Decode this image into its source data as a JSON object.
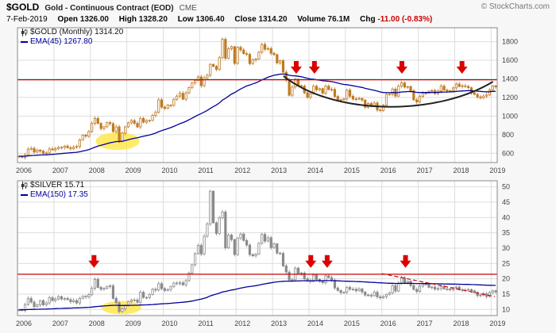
{
  "header": {
    "symbol": "$GOLD",
    "description": "Gold - Continuous Contract (EOD)",
    "exchange": "CME",
    "copyright": "© StockCharts.com",
    "date": "7-Feb-2019",
    "quote": {
      "open_label": "Open",
      "open": "1326.00",
      "high_label": "High",
      "high": "1328.20",
      "low_label": "Low",
      "low": "1306.40",
      "close_label": "Close",
      "close": "1314.20",
      "volume_label": "Volume",
      "volume": "76.1M",
      "chg_label": "Chg",
      "chg": "-11.00 (-0.83%)"
    }
  },
  "chart_data": [
    {
      "type": "candlestick",
      "title": "$GOLD (Monthly)",
      "legend_title": "$GOLD (Monthly) 1314.20",
      "legend_ema": "EMA(45) 1267.80",
      "start_year": 2006,
      "ylim": [
        500,
        1950
      ],
      "yticks": [
        600,
        800,
        1000,
        1200,
        1400,
        1600,
        1800
      ],
      "xticks": [
        2006,
        2007,
        2008,
        2009,
        2010,
        2011,
        2012,
        2013,
        2014,
        2015,
        2016,
        2017,
        2018,
        2019
      ],
      "ema_period": 45,
      "ema_color": "#000099",
      "candle_color": "#bf7a22",
      "resistance_level": 1390,
      "resistance_color": "#cc0000",
      "closes": [
        568,
        556,
        582,
        644,
        653,
        613,
        634,
        623,
        599,
        603,
        646,
        636,
        650,
        664,
        661,
        677,
        659,
        650,
        666,
        672,
        743,
        795,
        783,
        833,
        923,
        975,
        921,
        865,
        885,
        930,
        918,
        833,
        884,
        730,
        816,
        884,
        928,
        952,
        922,
        883,
        975,
        934,
        953,
        953,
        1008,
        1040,
        1175,
        1096,
        1083,
        1118,
        1115,
        1180,
        1215,
        1245,
        1181,
        1250,
        1307,
        1357,
        1383,
        1421,
        1327,
        1411,
        1439,
        1556,
        1535,
        1502,
        1628,
        1826,
        1622,
        1725,
        1746,
        1566,
        1740,
        1711,
        1671,
        1664,
        1564,
        1604,
        1614,
        1687,
        1771,
        1719,
        1726,
        1675,
        1661,
        1572,
        1595,
        1472,
        1387,
        1224,
        1312,
        1396,
        1327,
        1323,
        1250,
        1202,
        1240,
        1321,
        1283,
        1295,
        1246,
        1322,
        1285,
        1287,
        1211,
        1173,
        1175,
        1184,
        1279,
        1213,
        1183,
        1184,
        1189,
        1172,
        1095,
        1135,
        1115,
        1141,
        1065,
        1060,
        1116,
        1234,
        1233,
        1290,
        1215,
        1322,
        1357,
        1311,
        1317,
        1273,
        1174,
        1152,
        1212,
        1248,
        1247,
        1268,
        1275,
        1242,
        1268,
        1322,
        1280,
        1271,
        1273,
        1303,
        1345,
        1318,
        1325,
        1319,
        1305,
        1250,
        1233,
        1206,
        1196,
        1215,
        1226,
        1281,
        1325,
        1314
      ],
      "arrows": [
        {
          "year": 2013.65,
          "value": 1455
        },
        {
          "year": 2014.15,
          "value": 1455
        },
        {
          "year": 2016.55,
          "value": 1455
        },
        {
          "year": 2018.2,
          "value": 1455
        }
      ],
      "highlight": {
        "year": 2008.75,
        "value": 730,
        "rx_years": 0.6,
        "ry_value": 95,
        "color": "#ffe84d"
      },
      "arc": {
        "x": [
          2013.3,
          2014.7,
          2017.5,
          2019.05
        ],
        "v": [
          1430,
          1000,
          1000,
          1370
        ],
        "color": "#222222"
      }
    },
    {
      "type": "candlestick",
      "title": "$SILVER",
      "legend_title": "$SILVER 15.71",
      "legend_ema": "EMA(150) 17.35",
      "start_year": 2006,
      "ylim": [
        8,
        52
      ],
      "yticks": [
        10,
        15,
        20,
        25,
        30,
        35,
        40,
        45,
        50
      ],
      "xticks": [
        2006,
        2007,
        2008,
        2009,
        2010,
        2011,
        2012,
        2013,
        2014,
        2015,
        2016,
        2017,
        2018,
        2019
      ],
      "ema_period": 150,
      "ema_color": "#000099",
      "candle_color": "#8a8a8a",
      "resistance_level": 21.5,
      "resistance_color": "#cc0000",
      "closes": [
        9.9,
        9.7,
        11.6,
        13.6,
        12.4,
        10.9,
        11.5,
        12.9,
        11.5,
        12.1,
        13.8,
        12.9,
        13.4,
        14.2,
        13.4,
        13.6,
        13.2,
        12.5,
        12.9,
        12.1,
        13.6,
        14.3,
        14.1,
        14.8,
        16.9,
        19.8,
        17.2,
        16.6,
        16.9,
        17.5,
        17.7,
        13.6,
        12.2,
        9.3,
        10.2,
        11.3,
        12.6,
        13.1,
        13.1,
        12.3,
        15.6,
        13.9,
        13.9,
        14.9,
        16.6,
        16.3,
        18.4,
        16.8,
        16.2,
        16.5,
        17.5,
        18.6,
        18.4,
        18.7,
        18.0,
        19.4,
        21.9,
        24.6,
        28.2,
        30.9,
        28.1,
        33.9,
        37.9,
        48.6,
        38.3,
        34.8,
        39.9,
        41.8,
        30.1,
        34.3,
        32.8,
        27.9,
        33.3,
        34.6,
        32.5,
        31.0,
        27.9,
        27.5,
        28.1,
        31.6,
        34.5,
        32.3,
        33.4,
        30.2,
        31.4,
        28.4,
        28.3,
        24.2,
        22.2,
        19.6,
        19.7,
        23.5,
        21.7,
        21.9,
        20.0,
        19.4,
        19.1,
        21.2,
        19.8,
        19.2,
        18.7,
        21.0,
        20.4,
        19.5,
        17.0,
        16.2,
        15.5,
        15.6,
        17.2,
        16.6,
        16.6,
        16.1,
        16.7,
        15.7,
        14.7,
        14.6,
        14.5,
        15.6,
        14.1,
        13.8,
        14.2,
        14.9,
        15.4,
        17.8,
        16.0,
        18.6,
        20.4,
        18.7,
        19.2,
        17.8,
        16.5,
        15.9,
        17.6,
        18.3,
        18.3,
        17.2,
        17.3,
        16.6,
        16.8,
        17.6,
        16.7,
        16.7,
        16.4,
        17.0,
        17.3,
        16.4,
        16.3,
        16.3,
        16.5,
        16.1,
        15.5,
        14.5,
        14.7,
        15.1,
        14.2,
        15.5,
        16.1,
        15.7
      ],
      "arrows": [
        {
          "year": 2008.1,
          "value": 23.6
        },
        {
          "year": 2014.05,
          "value": 23.6
        },
        {
          "year": 2014.5,
          "value": 23.6
        },
        {
          "year": 2016.65,
          "value": 23.6
        }
      ],
      "highlight": {
        "year": 2008.85,
        "value": 10.6,
        "rx_years": 0.55,
        "ry_value": 2.2,
        "color": "#ffe84d"
      },
      "dashed_line": {
        "x1": 2016.0,
        "v1": 21.7,
        "x2": 2019.1,
        "v2": 14.2,
        "color": "#cc0000"
      }
    }
  ]
}
